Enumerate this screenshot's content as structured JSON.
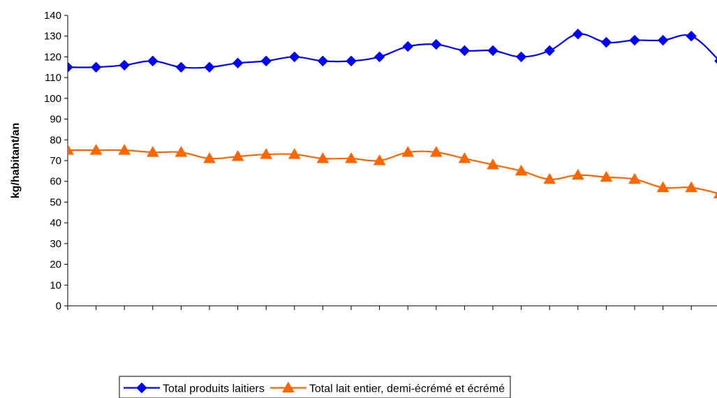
{
  "chart_data": {
    "type": "line",
    "title": "",
    "xlabel": "",
    "ylabel": "kg/habitant/an",
    "ylim": [
      0,
      140
    ],
    "yticks": [
      0,
      10,
      20,
      30,
      40,
      50,
      60,
      70,
      80,
      90,
      100,
      110,
      120,
      130,
      140
    ],
    "x": [
      1,
      2,
      3,
      4,
      5,
      6,
      7,
      8,
      9,
      10,
      11,
      12,
      13,
      14,
      15,
      16,
      17,
      18,
      19,
      20,
      21,
      22,
      23,
      24
    ],
    "grid": false,
    "legend_position": "bottom",
    "series": [
      {
        "name": "Total produits laitiers",
        "color": "#0000FF",
        "marker": "diamond",
        "values": [
          115,
          115,
          116,
          118,
          115,
          115,
          117,
          118,
          120,
          118,
          118,
          120,
          125,
          126,
          123,
          123,
          120,
          123,
          131,
          127,
          128,
          128,
          130,
          118
        ]
      },
      {
        "name": "Total lait entier, demi-écrémé et écrémé",
        "color": "#FF6600",
        "marker": "triangle",
        "values": [
          75,
          75,
          75,
          74,
          74,
          71,
          72,
          73,
          73,
          71,
          71,
          70,
          74,
          74,
          71,
          68,
          65,
          61,
          63,
          62,
          61,
          57,
          57,
          54
        ]
      }
    ]
  }
}
